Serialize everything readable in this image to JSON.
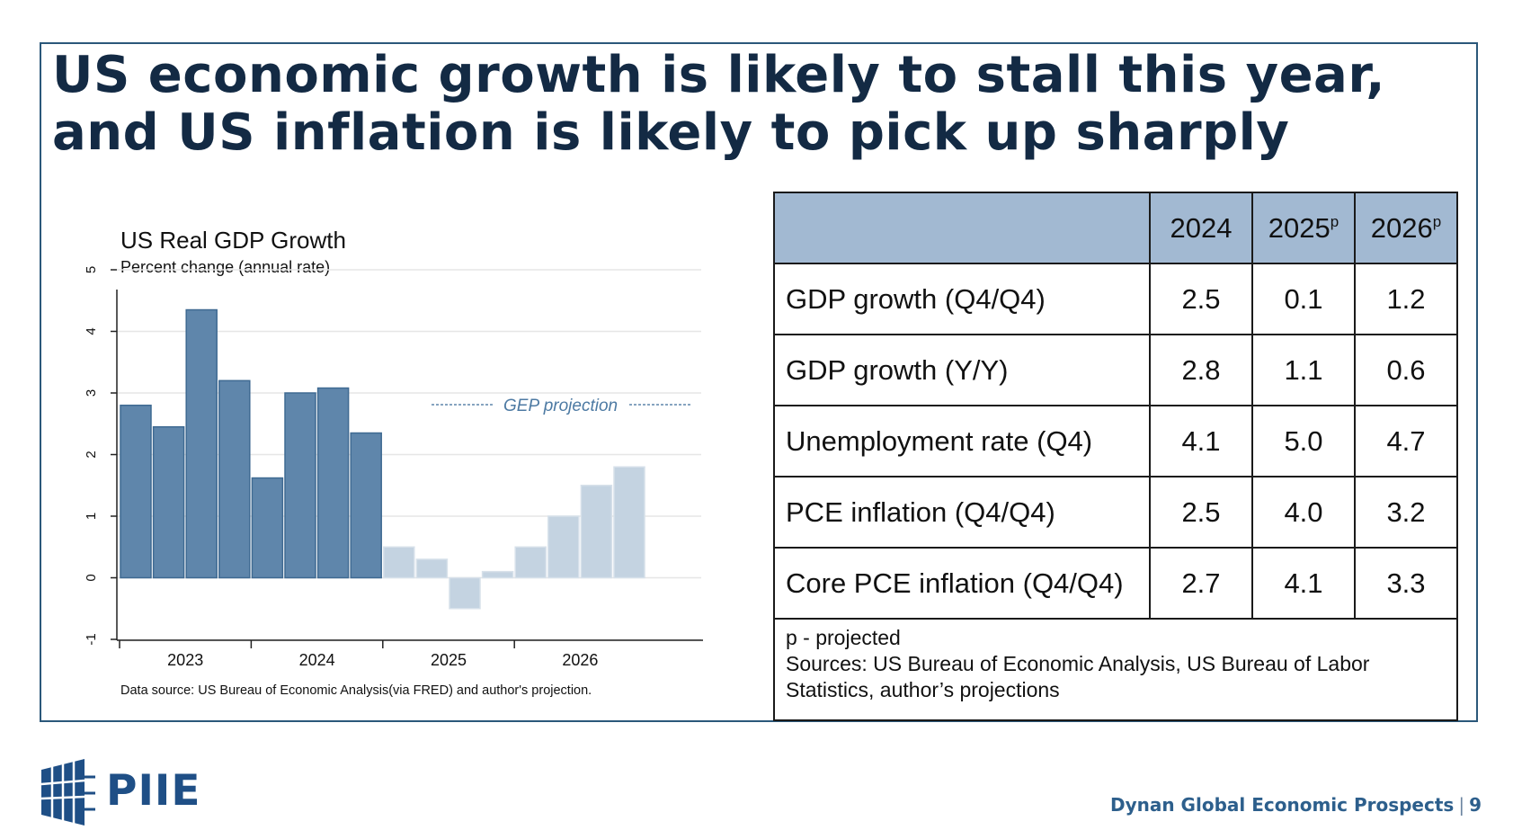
{
  "slide": {
    "title_line1": "US economic growth is likely to stall this year,",
    "title_line2": "and US inflation is likely to pick up sharply",
    "footer_text": "Dynan Global Economic Prospects",
    "footer_separator": "|",
    "page_number": "9",
    "logo_text": "PIIE"
  },
  "colors": {
    "accent": "#2b587a",
    "title": "#132a44",
    "bar_actual": "#5f86ab",
    "bar_projected": "#c4d3e1",
    "table_header": "#a2b9d2"
  },
  "chart_data": {
    "type": "bar",
    "title": "US Real GDP Growth",
    "subtitle": "Percent change (annual rate)",
    "xlabel": "",
    "ylabel": "",
    "ylim": [
      -1,
      5
    ],
    "yticks": [
      "-1",
      "0",
      "1",
      "2",
      "3",
      "4",
      "5"
    ],
    "xtick_labels": [
      "2023",
      "2024",
      "2025",
      "2026"
    ],
    "annotation": "GEP projection",
    "source": "Data source: US Bureau of Economic Analysis(via FRED) and author's projection.",
    "grid": true,
    "series": [
      {
        "values": [
          2.8,
          2.45,
          4.35,
          3.2,
          1.62,
          3.0,
          3.08,
          2.35,
          0.5,
          0.3,
          -0.5,
          0.1,
          0.5,
          1.0,
          1.5,
          1.8
        ],
        "projected": [
          false,
          false,
          false,
          false,
          false,
          false,
          false,
          false,
          true,
          true,
          true,
          true,
          true,
          true,
          true,
          true
        ]
      }
    ]
  },
  "table": {
    "header": [
      "",
      "2024",
      "2025",
      "2026"
    ],
    "header_superscripts": [
      "",
      "",
      "p",
      "p"
    ],
    "rows": [
      {
        "label": "GDP growth (Q4/Q4)",
        "values": [
          "2.5",
          "0.1",
          "1.2"
        ]
      },
      {
        "label": "GDP growth (Y/Y)",
        "values": [
          "2.8",
          "1.1",
          "0.6"
        ]
      },
      {
        "label": "Unemployment rate (Q4)",
        "values": [
          "4.1",
          "5.0",
          "4.7"
        ]
      },
      {
        "label": "PCE inflation (Q4/Q4)",
        "values": [
          "2.5",
          "4.0",
          "3.2"
        ]
      },
      {
        "label": "Core PCE inflation (Q4/Q4)",
        "values": [
          "2.7",
          "4.1",
          "3.3"
        ]
      }
    ],
    "note_line1": "p - projected",
    "note_line2": "Sources: US Bureau of Economic Analysis, US Bureau of Labor",
    "note_line3": "Statistics, author’s projections"
  }
}
